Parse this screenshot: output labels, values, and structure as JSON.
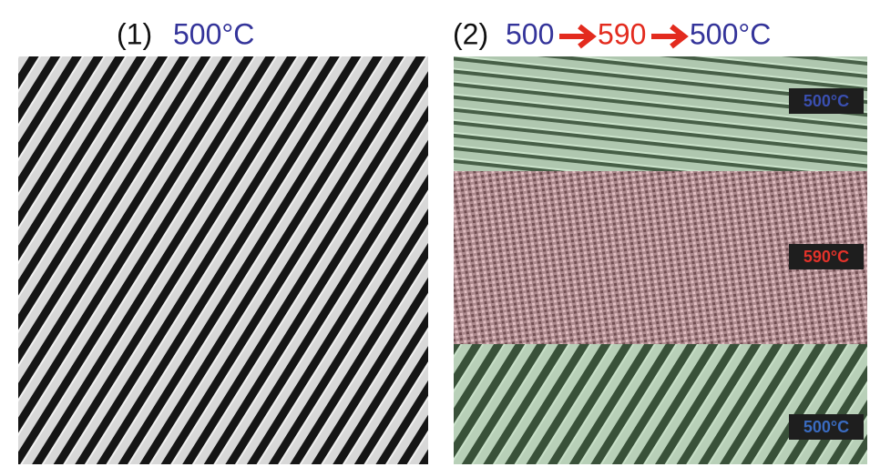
{
  "panels": [
    {
      "label": "(1)",
      "temperature": "500°C"
    },
    {
      "label": "(2)",
      "sequence": [
        "500",
        "590",
        "500°C"
      ],
      "regions": [
        {
          "label": "500°C"
        },
        {
          "label": "590°C"
        },
        {
          "label": "500°C"
        }
      ]
    }
  ]
}
